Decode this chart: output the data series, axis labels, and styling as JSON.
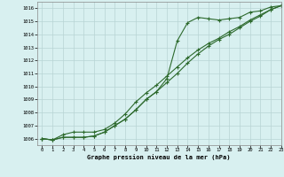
{
  "title": "Graphe pression niveau de la mer (hPa)",
  "background_color": "#d8f0f0",
  "grid_color": "#b8d4d4",
  "line_color": "#2d6a2d",
  "xlim": [
    -0.5,
    23
  ],
  "ylim": [
    1005.5,
    1016.5
  ],
  "yticks": [
    1006,
    1007,
    1008,
    1009,
    1010,
    1011,
    1012,
    1013,
    1014,
    1015,
    1016
  ],
  "xticks": [
    0,
    1,
    2,
    3,
    4,
    5,
    6,
    7,
    8,
    9,
    10,
    11,
    12,
    13,
    14,
    15,
    16,
    17,
    18,
    19,
    20,
    21,
    22,
    23
  ],
  "series1": [
    1006.0,
    1005.9,
    1006.1,
    1006.1,
    1006.1,
    1006.2,
    1006.5,
    1007.0,
    1007.5,
    1008.2,
    1009.0,
    1009.6,
    1010.6,
    1013.5,
    1014.9,
    1015.3,
    1015.2,
    1015.1,
    1015.2,
    1015.3,
    1015.7,
    1015.8,
    1016.1,
    1016.2
  ],
  "series2": [
    1006.0,
    1005.9,
    1006.1,
    1006.1,
    1006.1,
    1006.2,
    1006.5,
    1007.0,
    1007.5,
    1008.2,
    1009.0,
    1009.6,
    1010.3,
    1011.0,
    1011.8,
    1012.5,
    1013.1,
    1013.6,
    1014.0,
    1014.5,
    1015.0,
    1015.4,
    1015.9,
    1016.2
  ],
  "series3": [
    1006.0,
    1005.9,
    1006.3,
    1006.5,
    1006.5,
    1006.5,
    1006.7,
    1007.2,
    1007.9,
    1008.8,
    1009.5,
    1010.1,
    1010.8,
    1011.5,
    1012.2,
    1012.8,
    1013.3,
    1013.7,
    1014.2,
    1014.6,
    1015.1,
    1015.5,
    1015.9,
    1016.2
  ]
}
